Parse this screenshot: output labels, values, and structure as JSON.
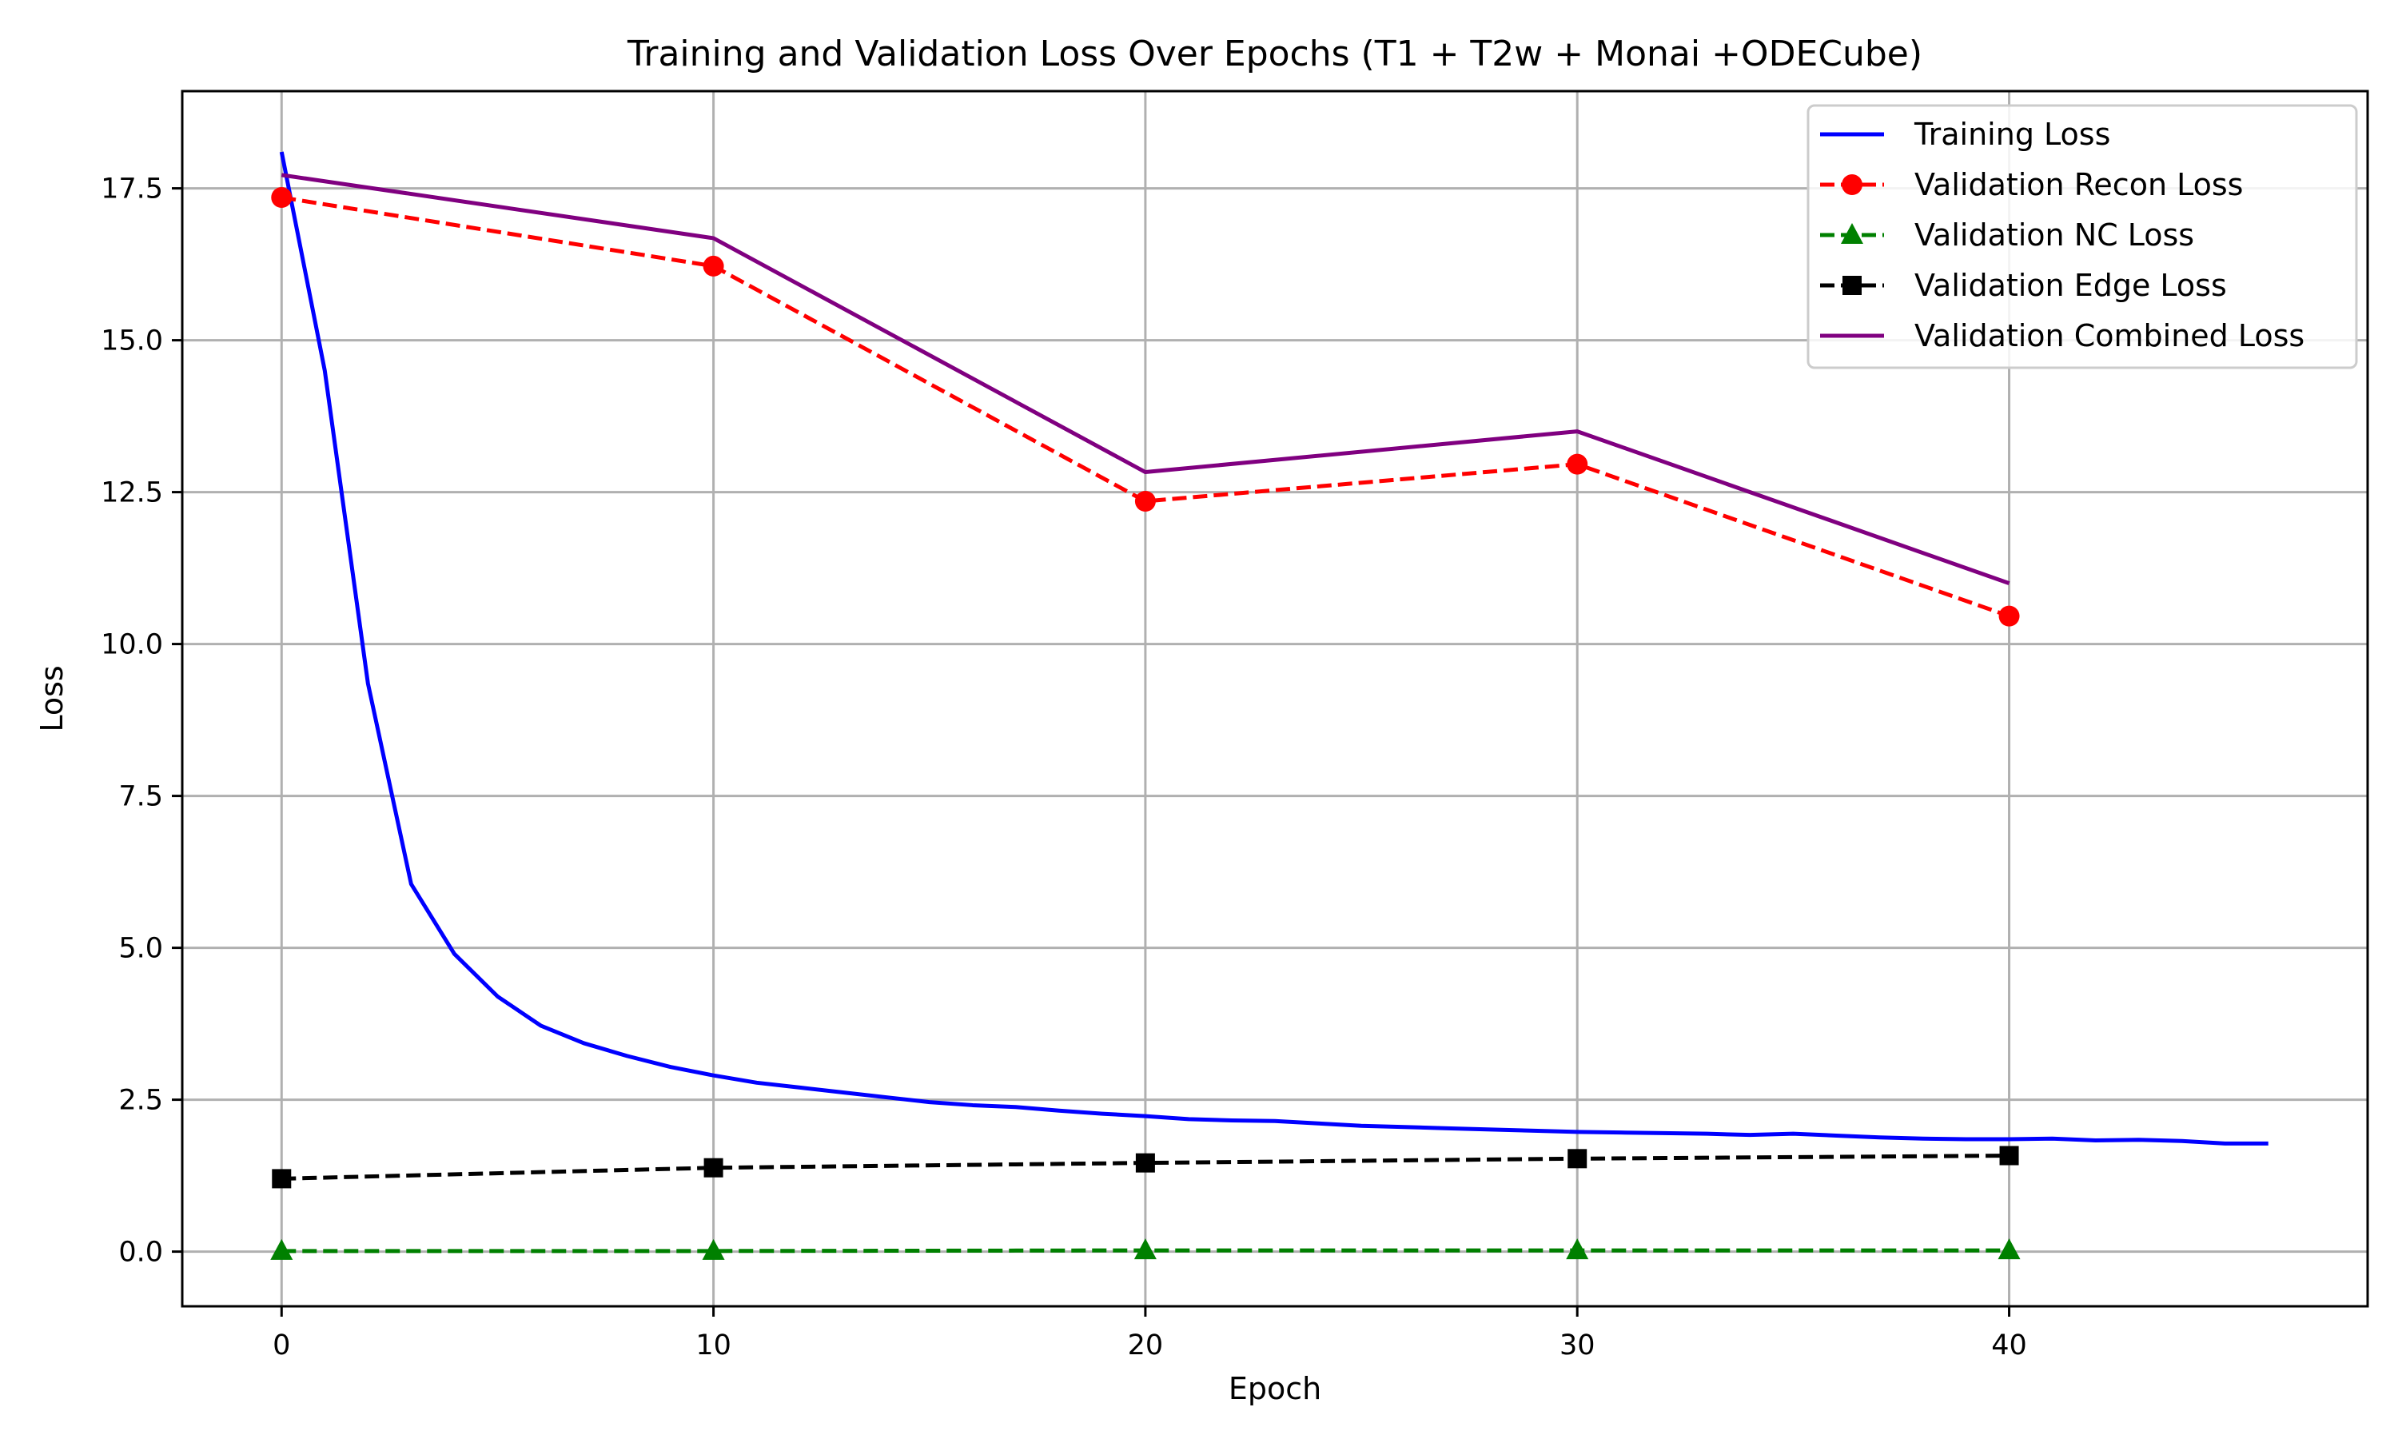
{
  "chart_data": {
    "type": "line",
    "title": "Training and Validation Loss Over Epochs (T1 + T2w + Monai +ODECube)",
    "xlabel": "Epoch",
    "ylabel": "Loss",
    "xlim": [
      -2.3,
      48.3
    ],
    "ylim": [
      -0.9,
      19.1
    ],
    "xticks": [
      0,
      10,
      20,
      30,
      40
    ],
    "yticks": [
      0.0,
      2.5,
      5.0,
      7.5,
      10.0,
      12.5,
      15.0,
      17.5
    ],
    "xtick_labels": [
      "0",
      "10",
      "20",
      "30",
      "40"
    ],
    "ytick_labels": [
      "0.0",
      "2.5",
      "5.0",
      "7.5",
      "10.0",
      "12.5",
      "15.0",
      "17.5"
    ],
    "grid": true,
    "legend_position": "top-right",
    "series": [
      {
        "name": "Training Loss",
        "color": "#0000ff",
        "line": "solid",
        "marker": "none",
        "x": [
          0,
          1,
          2,
          3,
          4,
          5,
          6,
          7,
          8,
          9,
          10,
          11,
          12,
          13,
          14,
          15,
          16,
          17,
          18,
          19,
          20,
          21,
          22,
          23,
          24,
          25,
          26,
          27,
          28,
          29,
          30,
          31,
          32,
          33,
          34,
          35,
          36,
          37,
          38,
          39,
          40,
          41,
          42,
          43,
          44,
          45,
          46
        ],
        "y": [
          18.1,
          14.5,
          9.35,
          6.05,
          4.9,
          4.2,
          3.72,
          3.43,
          3.22,
          3.04,
          2.9,
          2.78,
          2.7,
          2.62,
          2.54,
          2.46,
          2.41,
          2.38,
          2.32,
          2.27,
          2.23,
          2.18,
          2.16,
          2.15,
          2.11,
          2.07,
          2.05,
          2.03,
          2.01,
          1.99,
          1.97,
          1.96,
          1.95,
          1.94,
          1.92,
          1.94,
          1.91,
          1.88,
          1.86,
          1.85,
          1.85,
          1.86,
          1.83,
          1.84,
          1.82,
          1.78,
          1.78
        ]
      },
      {
        "name": "Validation Recon Loss",
        "color": "#ff0000",
        "line": "dashed",
        "marker": "circle",
        "x": [
          0,
          10,
          20,
          30,
          40
        ],
        "y": [
          17.35,
          16.22,
          12.35,
          12.96,
          10.46
        ]
      },
      {
        "name": "Validation NC Loss",
        "color": "#008000",
        "line": "dashed",
        "marker": "triangle",
        "x": [
          0,
          10,
          20,
          30,
          40
        ],
        "y": [
          0.01,
          0.01,
          0.02,
          0.02,
          0.02
        ]
      },
      {
        "name": "Validation Edge Loss",
        "color": "#000000",
        "line": "dashed",
        "marker": "square",
        "x": [
          0,
          10,
          20,
          30,
          40
        ],
        "y": [
          1.2,
          1.38,
          1.46,
          1.53,
          1.58
        ]
      },
      {
        "name": "Validation Combined Loss",
        "color": "#800080",
        "line": "solid",
        "marker": "none",
        "x": [
          0,
          10,
          20,
          30,
          40
        ],
        "y": [
          17.72,
          16.68,
          12.83,
          13.5,
          11.0
        ]
      }
    ]
  }
}
